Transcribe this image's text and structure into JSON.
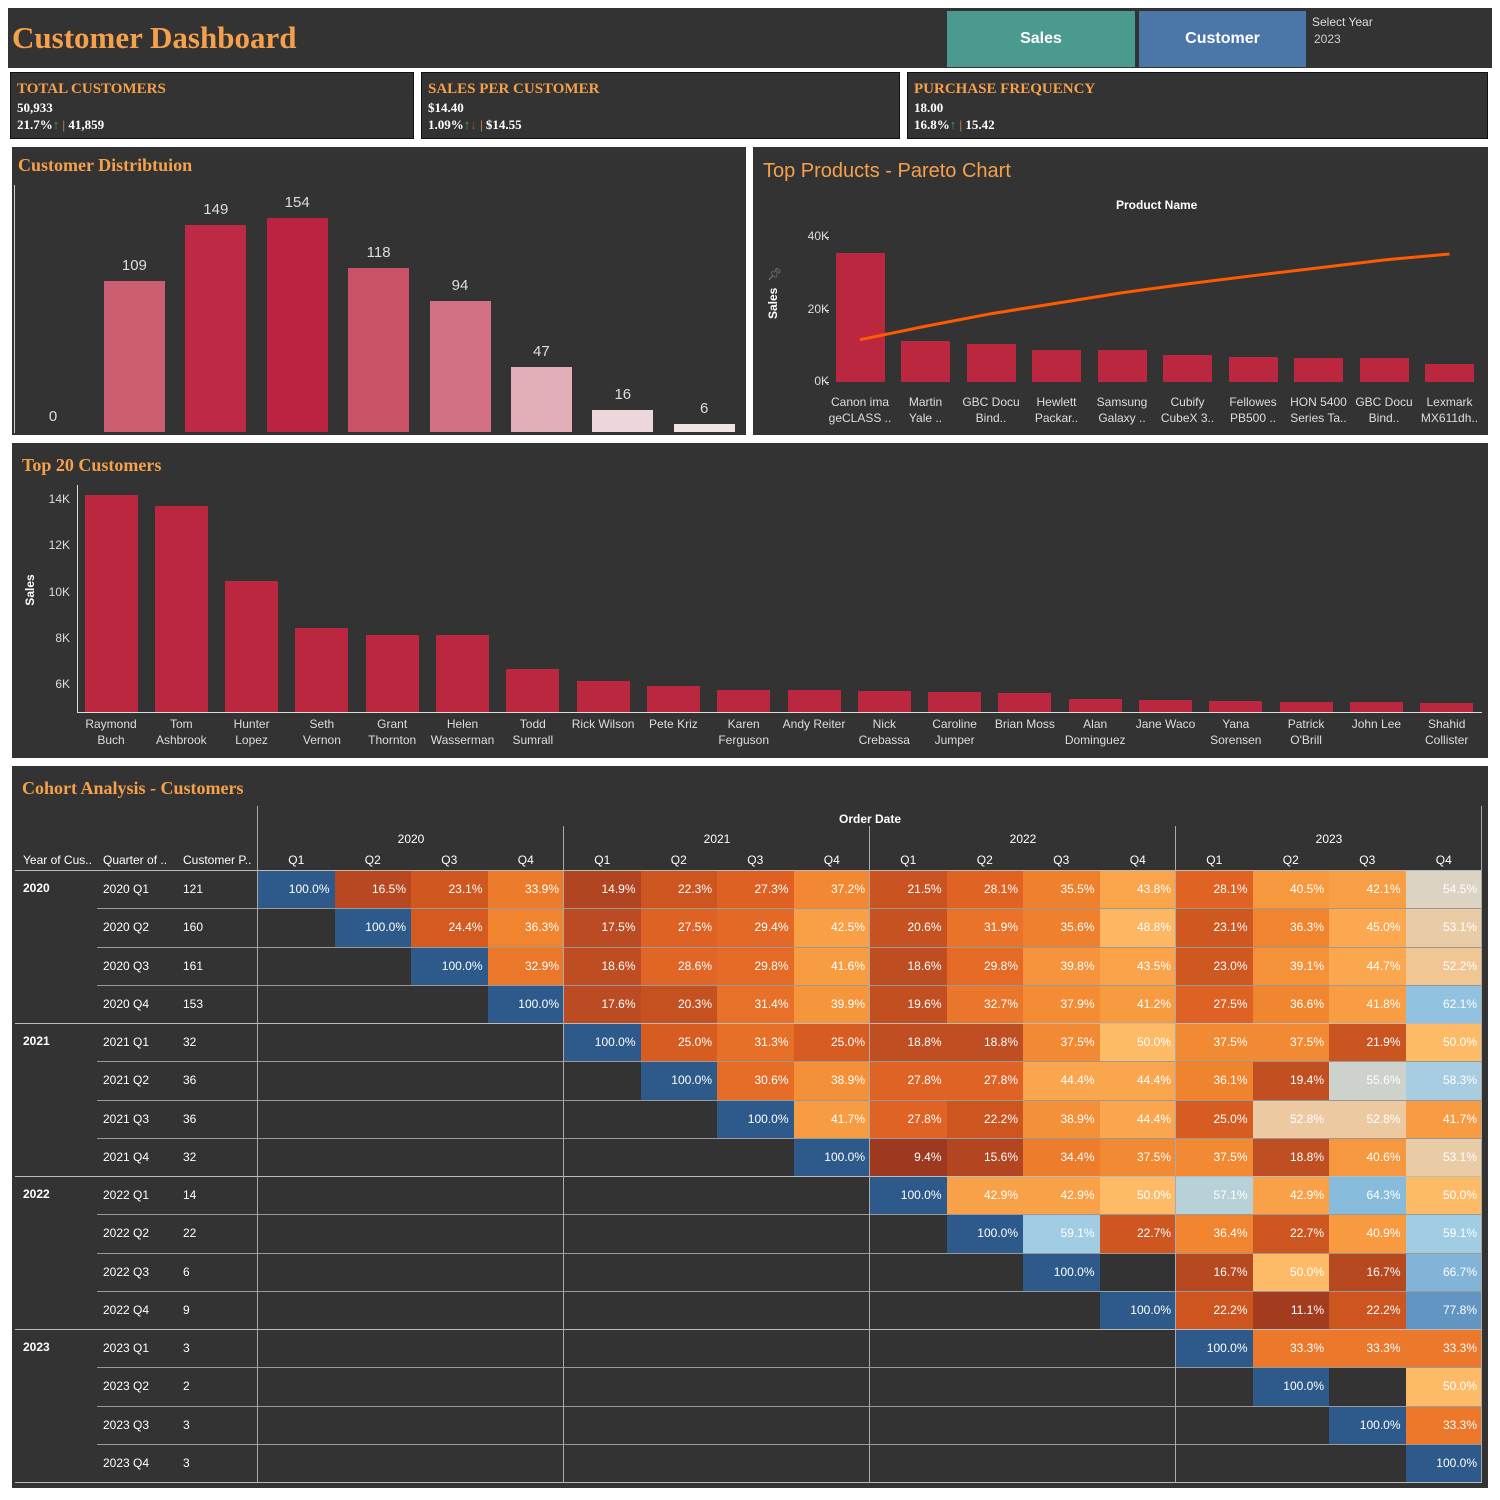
{
  "header": {
    "title": "Customer Dashboard",
    "nav": {
      "sales_label": "Sales",
      "customer_label": "Customer",
      "sales_color": "#4a9a8f",
      "customer_color": "#4a76a8"
    },
    "year_filter": {
      "label": "Select Year",
      "value": "2023"
    }
  },
  "kpis": [
    {
      "title": "TOTAL CUSTOMERS",
      "value": "50,933",
      "change": "21.7%",
      "direction": "up",
      "previous": "41,859"
    },
    {
      "title": "SALES PER CUSTOMER",
      "value": "$14.40",
      "change": "1.09%",
      "direction": "up-down",
      "previous": "$14.55"
    },
    {
      "title": "PURCHASE FREQUENCY",
      "value": "18.00",
      "change": "16.8%",
      "direction": "up",
      "previous": "15.42"
    }
  ],
  "colors": {
    "accent": "#f5a04a",
    "bar": "#bc2740",
    "line": "#ff5a00",
    "panel": "#333333"
  },
  "chart_data": [
    {
      "type": "bar",
      "title": "Customer Distribtuion",
      "values": [
        0,
        109,
        149,
        154,
        118,
        94,
        47,
        16,
        6
      ],
      "color_by_value": true
    },
    {
      "type": "bar",
      "title": "Top Products - Pareto Chart",
      "xlabel": "Product Name",
      "ylabel": "Sales",
      "yticks": [
        "40K",
        "20K",
        "0K"
      ],
      "ylim": [
        0,
        40000
      ],
      "categories": [
        "Canon ima\ngeCLASS ..",
        "Martin\nYale ..",
        "GBC Docu\nBind..",
        "Hewlett\nPackar..",
        "Samsung\nGalaxy ..",
        "Cubify\nCubeX 3..",
        "Fellowes\nPB500 ..",
        "HON 5400\nSeries Ta..",
        "GBC Docu\nBind..",
        "Lexmark\nMX611dh.."
      ],
      "values": [
        35500,
        11300,
        10500,
        8800,
        8800,
        7400,
        6900,
        6600,
        6600,
        5000
      ],
      "line": "running total"
    },
    {
      "type": "bar",
      "title": "Top 20 Customers",
      "ylabel": "Sales",
      "yticks": [
        "14K",
        "12K",
        "10K",
        "8K",
        "6K"
      ],
      "ylim": [
        4830,
        14500
      ],
      "categories": [
        "Raymond\nBuch",
        "Tom\nAshbrook",
        "Hunter\nLopez",
        "Seth\nVernon",
        "Grant\nThornton",
        "Helen\nWasserman",
        "Todd\nSumrall",
        "Rick Wilson",
        "Pete Kriz",
        "Karen\nFerguson",
        "Andy Reiter",
        "Nick\nCrebassa",
        "Caroline\nJumper",
        "Brian Moss",
        "Alan\nDominguez",
        "Jane Waco",
        "Yana\nSorensen",
        "Patrick\nO'Brill",
        "John Lee",
        "Shahid\nCollister"
      ],
      "values": [
        14220,
        13750,
        10500,
        8470,
        8160,
        8170,
        6700,
        6170,
        5960,
        5790,
        5780,
        5740,
        5700,
        5650,
        5400,
        5350,
        5300,
        5260,
        5250,
        5200
      ]
    }
  ],
  "cohort": {
    "title": "Cohort Analysis - Customers",
    "col_header": "Order Date",
    "row_headers": [
      "Year of Cus..",
      "Quarter of ..",
      "Customer P.."
    ],
    "years": [
      "2020",
      "2021",
      "2022",
      "2023"
    ],
    "quarters": [
      "Q1",
      "Q2",
      "Q3",
      "Q4"
    ],
    "rows": [
      {
        "year": "2020",
        "quarter": "2020 Q1",
        "customers": "121",
        "values": [
          100,
          16.5,
          23.1,
          33.9,
          14.9,
          22.3,
          27.3,
          37.2,
          21.5,
          28.1,
          35.5,
          43.8,
          28.1,
          40.5,
          42.1,
          54.5
        ]
      },
      {
        "year": "",
        "quarter": "2020 Q2",
        "customers": "160",
        "values": [
          null,
          100,
          24.4,
          36.3,
          17.5,
          27.5,
          29.4,
          42.5,
          20.6,
          31.9,
          35.6,
          48.8,
          23.1,
          36.3,
          45.0,
          53.1
        ]
      },
      {
        "year": "",
        "quarter": "2020 Q3",
        "customers": "161",
        "values": [
          null,
          null,
          100,
          32.9,
          18.6,
          28.6,
          29.8,
          41.6,
          18.6,
          29.8,
          39.8,
          43.5,
          23.0,
          39.1,
          44.7,
          52.2
        ]
      },
      {
        "year": "",
        "quarter": "2020 Q4",
        "customers": "153",
        "values": [
          null,
          null,
          null,
          100,
          17.6,
          20.3,
          31.4,
          39.9,
          19.6,
          32.7,
          37.9,
          41.2,
          27.5,
          36.6,
          41.8,
          62.1
        ]
      },
      {
        "year": "2021",
        "quarter": "2021 Q1",
        "customers": "32",
        "values": [
          null,
          null,
          null,
          null,
          100,
          25.0,
          31.3,
          25.0,
          18.8,
          18.8,
          37.5,
          50.0,
          37.5,
          37.5,
          21.9,
          50.0
        ]
      },
      {
        "year": "",
        "quarter": "2021 Q2",
        "customers": "36",
        "values": [
          null,
          null,
          null,
          null,
          null,
          100,
          30.6,
          38.9,
          27.8,
          27.8,
          44.4,
          44.4,
          36.1,
          19.4,
          55.6,
          58.3
        ]
      },
      {
        "year": "",
        "quarter": "2021 Q3",
        "customers": "36",
        "values": [
          null,
          null,
          null,
          null,
          null,
          null,
          100,
          41.7,
          27.8,
          22.2,
          38.9,
          44.4,
          25.0,
          52.8,
          52.8,
          41.7
        ]
      },
      {
        "year": "",
        "quarter": "2021 Q4",
        "customers": "32",
        "values": [
          null,
          null,
          null,
          null,
          null,
          null,
          null,
          100,
          9.4,
          15.6,
          34.4,
          37.5,
          37.5,
          18.8,
          40.6,
          53.1
        ]
      },
      {
        "year": "2022",
        "quarter": "2022 Q1",
        "customers": "14",
        "values": [
          null,
          null,
          null,
          null,
          null,
          null,
          null,
          null,
          100,
          42.9,
          42.9,
          50.0,
          57.1,
          42.9,
          64.3,
          50.0
        ]
      },
      {
        "year": "",
        "quarter": "2022 Q2",
        "customers": "22",
        "values": [
          null,
          null,
          null,
          null,
          null,
          null,
          null,
          null,
          null,
          100,
          59.1,
          22.7,
          36.4,
          22.7,
          40.9,
          59.1
        ]
      },
      {
        "year": "",
        "quarter": "2022 Q3",
        "customers": "6",
        "values": [
          null,
          null,
          null,
          null,
          null,
          null,
          null,
          null,
          null,
          null,
          100,
          null,
          16.7,
          50.0,
          16.7,
          66.7
        ]
      },
      {
        "year": "",
        "quarter": "2022 Q4",
        "customers": "9",
        "values": [
          null,
          null,
          null,
          null,
          null,
          null,
          null,
          null,
          null,
          null,
          null,
          100,
          22.2,
          11.1,
          22.2,
          77.8
        ]
      },
      {
        "year": "2023",
        "quarter": "2023 Q1",
        "customers": "3",
        "values": [
          null,
          null,
          null,
          null,
          null,
          null,
          null,
          null,
          null,
          null,
          null,
          null,
          100,
          33.3,
          33.3,
          33.3
        ]
      },
      {
        "year": "",
        "quarter": "2023 Q2",
        "customers": "2",
        "values": [
          null,
          null,
          null,
          null,
          null,
          null,
          null,
          null,
          null,
          null,
          null,
          null,
          null,
          100,
          null,
          50.0
        ]
      },
      {
        "year": "",
        "quarter": "2023 Q3",
        "customers": "3",
        "values": [
          null,
          null,
          null,
          null,
          null,
          null,
          null,
          null,
          null,
          null,
          null,
          null,
          null,
          null,
          100,
          33.3
        ]
      },
      {
        "year": "",
        "quarter": "2023 Q4",
        "customers": "3",
        "values": [
          null,
          null,
          null,
          null,
          null,
          null,
          null,
          null,
          null,
          null,
          null,
          null,
          null,
          null,
          null,
          100
        ]
      }
    ]
  }
}
